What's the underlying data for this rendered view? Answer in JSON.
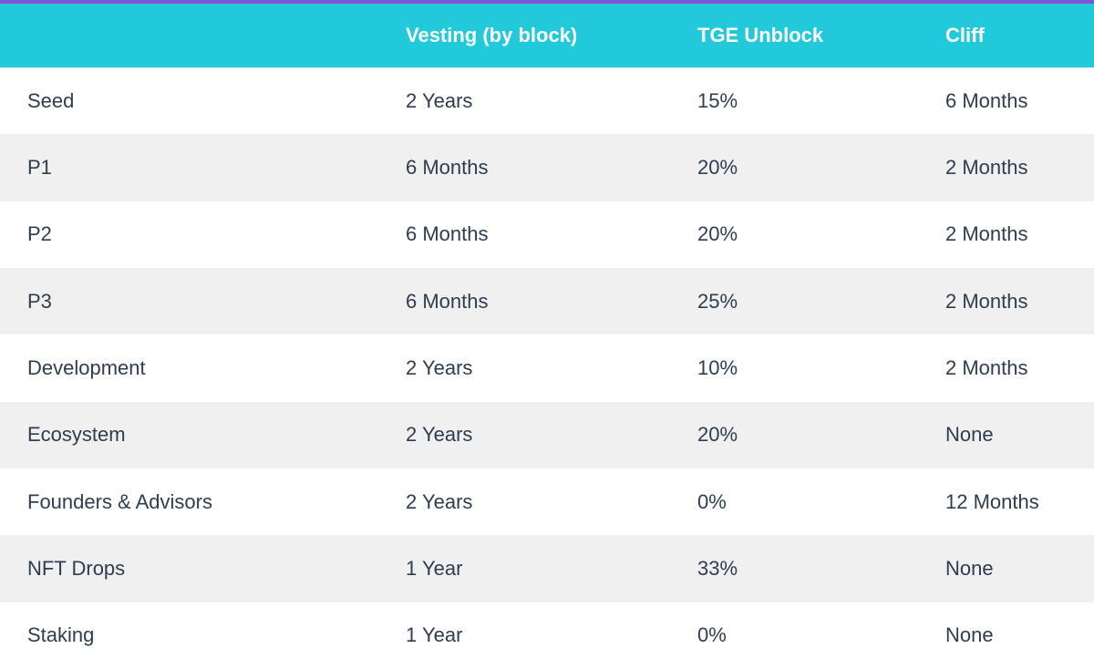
{
  "theme": {
    "top_bar_color": "#7d55d7",
    "header_bg": "#22c9db",
    "header_text_color": "#ffffff",
    "row_bg": "#ffffff",
    "row_alt_bg": "#f0f0f0",
    "body_text_color": "#2e3d50"
  },
  "chart_data": {
    "type": "table",
    "title": "",
    "columns": [
      "",
      "Vesting (by block)",
      "TGE Unblock",
      "Cliff"
    ],
    "rows": [
      [
        "Seed",
        "2 Years",
        "15%",
        "6 Months"
      ],
      [
        "P1",
        "6 Months",
        "20%",
        "2 Months"
      ],
      [
        "P2",
        "6 Months",
        "20%",
        "2 Months"
      ],
      [
        "P3",
        "6 Months",
        "25%",
        "2 Months"
      ],
      [
        "Development",
        "2 Years",
        "10%",
        "2 Months"
      ],
      [
        "Ecosystem",
        "2 Years",
        "20%",
        "None"
      ],
      [
        "Founders & Advisors",
        "2 Years",
        "0%",
        "12 Months"
      ],
      [
        "NFT Drops",
        "1 Year",
        "33%",
        "None"
      ],
      [
        "Staking",
        "1 Year",
        "0%",
        "None"
      ]
    ]
  }
}
